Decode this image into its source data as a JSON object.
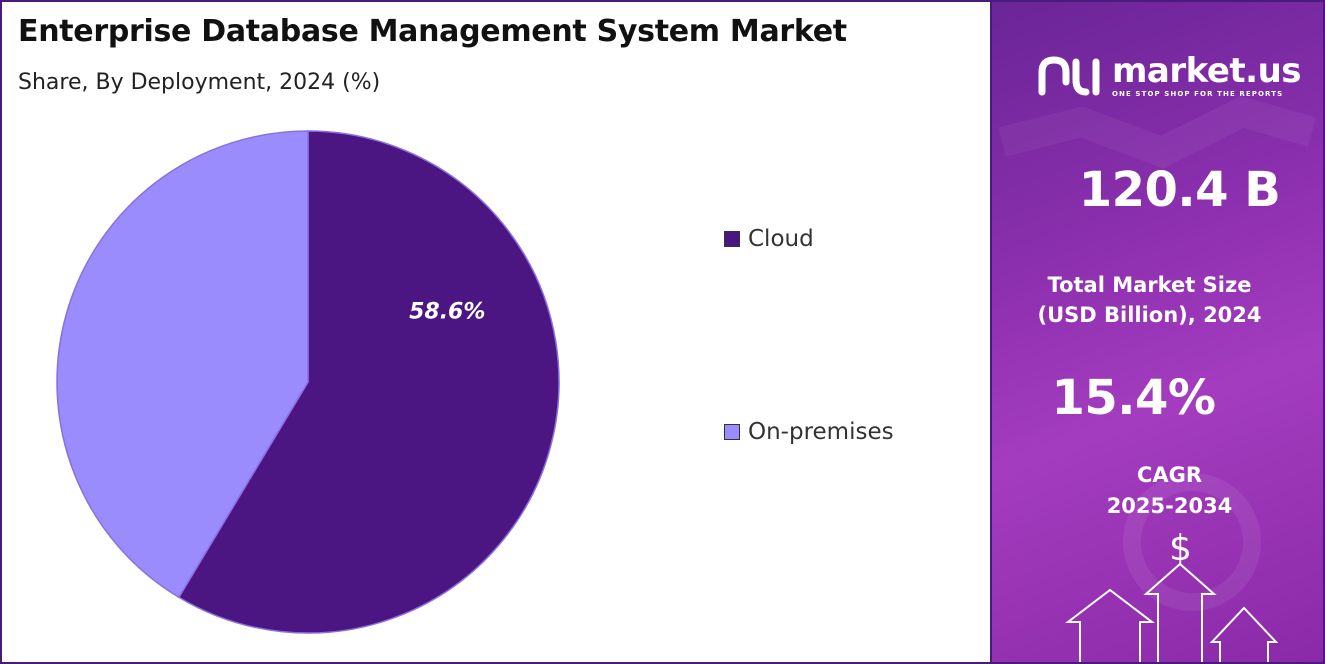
{
  "header": {
    "title": "Enterprise Database Management System Market",
    "subtitle": "Share, By Deployment, 2024 (%)"
  },
  "chart_data": {
    "type": "pie",
    "title": "Enterprise Database Management System Market",
    "subtitle": "Share, By Deployment, 2024 (%)",
    "categories": [
      "Cloud",
      "On-premises"
    ],
    "values": [
      58.6,
      41.4
    ],
    "colors": [
      "#4b1682",
      "#9a8cfc"
    ],
    "data_labels": [
      "58.6%",
      ""
    ],
    "legend_position": "right"
  },
  "sidebar": {
    "brand": {
      "name": "market.us",
      "tagline": "ONE STOP SHOP FOR THE REPORTS"
    },
    "market_size": {
      "value": "120.4 B",
      "label_line1": "Total Market Size",
      "label_line2": "(USD Billion), 2024"
    },
    "cagr": {
      "value": "15.4%",
      "label_line1": "CAGR",
      "label_line2": "2025-2034"
    },
    "dollar_symbol": "$"
  }
}
